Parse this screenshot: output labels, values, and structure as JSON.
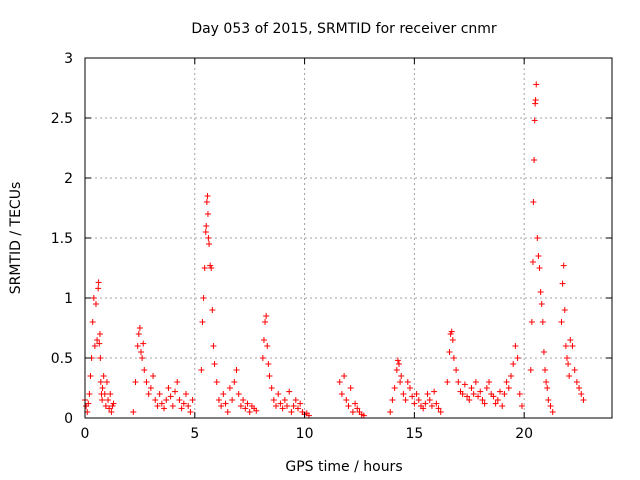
{
  "chart_data": {
    "type": "scatter",
    "title": "Day 053 of 2015, SRMTID for receiver cnmr",
    "xlabel": "GPS time / hours",
    "ylabel": "SRMTID / TECUs",
    "xlim": [
      0,
      24
    ],
    "ylim": [
      0,
      3
    ],
    "xticks": [
      0,
      5,
      10,
      15,
      20
    ],
    "xtick_labels": [
      "0",
      "5",
      "10",
      "15",
      "20"
    ],
    "yticks": [
      0,
      0.5,
      1,
      1.5,
      2,
      2.5,
      3
    ],
    "ytick_labels": [
      "0",
      "0.5",
      "1",
      "1.5",
      "2",
      "2.5",
      "3"
    ],
    "grid": true,
    "marker": "+",
    "color": "#ff0000",
    "series": [
      {
        "name": "cnmr",
        "x": [
          0.0,
          0.05,
          0.1,
          0.15,
          0.2,
          0.25,
          0.3,
          0.35,
          0.4,
          0.45,
          0.5,
          0.55,
          0.6,
          0.62,
          0.65,
          0.68,
          0.7,
          0.72,
          0.75,
          0.78,
          0.8,
          0.85,
          0.9,
          0.95,
          1.0,
          1.05,
          1.1,
          1.15,
          1.2,
          1.25,
          1.3,
          2.2,
          2.3,
          2.4,
          2.45,
          2.5,
          2.55,
          2.6,
          2.65,
          2.7,
          2.8,
          2.9,
          3.0,
          3.1,
          3.2,
          3.3,
          3.4,
          3.5,
          3.6,
          3.7,
          3.8,
          3.9,
          4.0,
          4.1,
          4.2,
          4.3,
          4.4,
          4.5,
          4.6,
          4.7,
          4.8,
          4.9,
          5.3,
          5.35,
          5.4,
          5.45,
          5.5,
          5.52,
          5.55,
          5.58,
          5.6,
          5.62,
          5.65,
          5.7,
          5.75,
          5.8,
          5.85,
          5.9,
          6.0,
          6.1,
          6.2,
          6.3,
          6.4,
          6.5,
          6.6,
          6.7,
          6.8,
          6.9,
          7.0,
          7.1,
          7.2,
          7.3,
          7.4,
          7.5,
          7.6,
          7.7,
          7.8,
          8.1,
          8.15,
          8.2,
          8.25,
          8.3,
          8.35,
          8.4,
          8.5,
          8.6,
          8.7,
          8.8,
          8.9,
          9.0,
          9.1,
          9.2,
          9.3,
          9.4,
          9.5,
          9.6,
          9.7,
          9.8,
          9.9,
          10.0,
          10.1,
          10.2,
          11.6,
          11.7,
          11.8,
          11.9,
          12.0,
          12.1,
          12.2,
          12.3,
          12.4,
          12.5,
          12.6,
          12.7,
          13.9,
          14.0,
          14.1,
          14.2,
          14.25,
          14.3,
          14.35,
          14.4,
          14.5,
          14.6,
          14.7,
          14.8,
          14.9,
          15.0,
          15.1,
          15.2,
          15.3,
          15.4,
          15.5,
          15.6,
          15.7,
          15.8,
          15.9,
          16.0,
          16.1,
          16.2,
          16.5,
          16.6,
          16.65,
          16.7,
          16.75,
          16.8,
          16.9,
          17.0,
          17.1,
          17.2,
          17.3,
          17.4,
          17.5,
          17.6,
          17.7,
          17.8,
          17.9,
          18.0,
          18.1,
          18.2,
          18.3,
          18.4,
          18.5,
          18.6,
          18.7,
          18.8,
          18.9,
          19.0,
          19.1,
          19.2,
          19.3,
          19.4,
          19.5,
          19.6,
          19.7,
          19.8,
          19.9,
          20.3,
          20.35,
          20.4,
          20.42,
          20.45,
          20.48,
          20.5,
          20.52,
          20.55,
          20.6,
          20.65,
          20.7,
          20.75,
          20.8,
          20.85,
          20.9,
          20.95,
          21.0,
          21.05,
          21.1,
          21.2,
          21.3,
          21.7,
          21.75,
          21.8,
          21.85,
          21.9,
          21.95,
          22.0,
          22.05,
          22.1,
          22.2,
          22.3,
          22.4,
          22.5,
          22.6,
          22.7
        ],
        "y": [
          0.15,
          0.1,
          0.05,
          0.12,
          0.2,
          0.35,
          0.5,
          0.8,
          1.0,
          0.6,
          0.95,
          0.65,
          1.08,
          1.13,
          0.62,
          0.7,
          0.5,
          0.3,
          0.2,
          0.15,
          0.25,
          0.35,
          0.2,
          0.1,
          0.3,
          0.15,
          0.08,
          0.2,
          0.05,
          0.1,
          0.12,
          0.05,
          0.3,
          0.6,
          0.7,
          0.75,
          0.55,
          0.5,
          0.62,
          0.4,
          0.3,
          0.2,
          0.25,
          0.35,
          0.15,
          0.1,
          0.2,
          0.12,
          0.08,
          0.15,
          0.25,
          0.18,
          0.1,
          0.22,
          0.3,
          0.15,
          0.08,
          0.12,
          0.2,
          0.1,
          0.05,
          0.15,
          0.4,
          0.8,
          1.0,
          1.25,
          1.55,
          1.6,
          1.8,
          1.85,
          1.7,
          1.5,
          1.45,
          1.27,
          1.25,
          0.9,
          0.6,
          0.45,
          0.3,
          0.15,
          0.1,
          0.2,
          0.12,
          0.05,
          0.25,
          0.15,
          0.3,
          0.4,
          0.2,
          0.1,
          0.15,
          0.08,
          0.12,
          0.05,
          0.1,
          0.08,
          0.06,
          0.5,
          0.65,
          0.8,
          0.85,
          0.6,
          0.45,
          0.35,
          0.25,
          0.15,
          0.1,
          0.2,
          0.12,
          0.08,
          0.15,
          0.1,
          0.22,
          0.05,
          0.1,
          0.15,
          0.08,
          0.12,
          0.05,
          0.03,
          0.04,
          0.02,
          0.3,
          0.2,
          0.35,
          0.15,
          0.1,
          0.25,
          0.05,
          0.12,
          0.08,
          0.05,
          0.03,
          0.02,
          0.05,
          0.15,
          0.25,
          0.4,
          0.48,
          0.45,
          0.3,
          0.35,
          0.2,
          0.15,
          0.3,
          0.25,
          0.18,
          0.12,
          0.2,
          0.15,
          0.1,
          0.08,
          0.12,
          0.2,
          0.15,
          0.1,
          0.22,
          0.12,
          0.08,
          0.05,
          0.3,
          0.55,
          0.7,
          0.72,
          0.65,
          0.5,
          0.4,
          0.3,
          0.22,
          0.2,
          0.28,
          0.18,
          0.15,
          0.25,
          0.2,
          0.3,
          0.18,
          0.22,
          0.15,
          0.12,
          0.25,
          0.3,
          0.2,
          0.18,
          0.12,
          0.15,
          0.22,
          0.1,
          0.2,
          0.3,
          0.25,
          0.35,
          0.45,
          0.6,
          0.5,
          0.2,
          0.1,
          0.4,
          0.8,
          1.3,
          1.8,
          2.15,
          2.48,
          2.62,
          2.65,
          2.78,
          1.5,
          1.35,
          1.25,
          1.05,
          0.95,
          0.8,
          0.55,
          0.4,
          0.3,
          0.25,
          0.15,
          0.1,
          0.05,
          0.8,
          1.12,
          1.27,
          0.9,
          0.6,
          0.5,
          0.45,
          0.35,
          0.65,
          0.6,
          0.4,
          0.3,
          0.25,
          0.2,
          0.15
        ]
      }
    ]
  }
}
